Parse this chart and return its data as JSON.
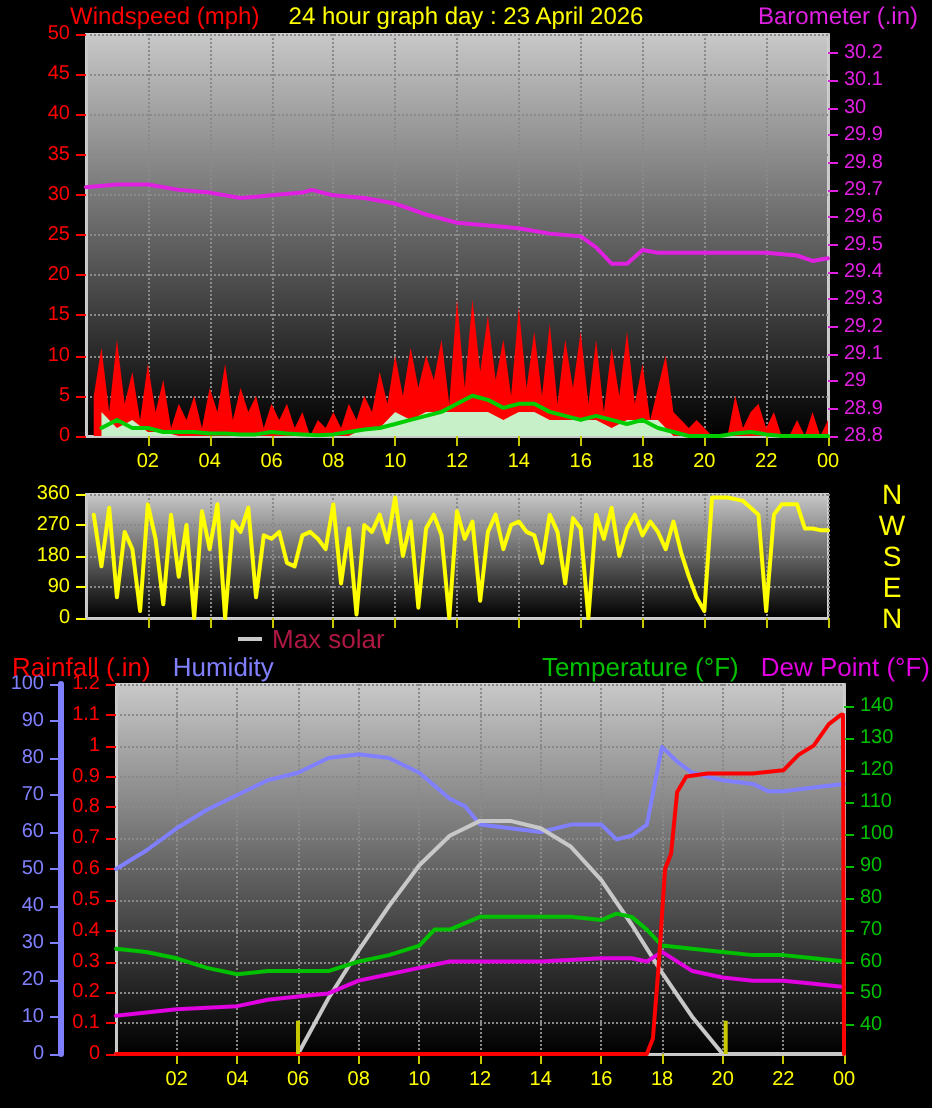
{
  "chart_data": [
    {
      "type": "line",
      "title": "24 hour graph day : 23 April 2026",
      "ylabel": "Windspeed (mph)",
      "y2label": "Barometer (.in)",
      "x": [
        "2026-04-23T00:15",
        "2026-04-23T00:30",
        "2026-04-23T00:45",
        "2026-04-23T01:00",
        "2026-04-23T01:15",
        "2026-04-23T01:30",
        "2026-04-23T01:45",
        "2026-04-23T02:00",
        "2026-04-23T02:15",
        "2026-04-23T02:30",
        "2026-04-23T02:45",
        "2026-04-23T03:00",
        "2026-04-23T03:15",
        "2026-04-23T03:30",
        "2026-04-23T03:45",
        "2026-04-23T04:00",
        "2026-04-23T04:15",
        "2026-04-23T04:30",
        "2026-04-23T04:45",
        "2026-04-23T05:00",
        "2026-04-23T05:15",
        "2026-04-23T05:30",
        "2026-04-23T05:45",
        "2026-04-23T06:00",
        "2026-04-23T06:15",
        "2026-04-23T06:30",
        "2026-04-23T06:45",
        "2026-04-23T07:00",
        "2026-04-23T07:15",
        "2026-04-23T07:30",
        "2026-04-23T07:45",
        "2026-04-23T08:00",
        "2026-04-23T08:15",
        "2026-04-23T08:30",
        "2026-04-23T08:45",
        "2026-04-23T09:00",
        "2026-04-23T09:15",
        "2026-04-23T09:30",
        "2026-04-23T09:45",
        "2026-04-23T10:00",
        "2026-04-23T10:15",
        "2026-04-23T10:30",
        "2026-04-23T10:45",
        "2026-04-23T11:00",
        "2026-04-23T11:15",
        "2026-04-23T11:30",
        "2026-04-23T11:45",
        "2026-04-23T12:00",
        "2026-04-23T12:15",
        "2026-04-23T12:30",
        "2026-04-23T12:45",
        "2026-04-23T13:00",
        "2026-04-23T13:15",
        "2026-04-23T13:30",
        "2026-04-23T13:45",
        "2026-04-23T14:00",
        "2026-04-23T14:15",
        "2026-04-23T14:30",
        "2026-04-23T14:45",
        "2026-04-23T15:00",
        "2026-04-23T15:15",
        "2026-04-23T15:30",
        "2026-04-23T15:45",
        "2026-04-23T16:00",
        "2026-04-23T16:15",
        "2026-04-23T16:30",
        "2026-04-23T16:45",
        "2026-04-23T17:00",
        "2026-04-23T17:15",
        "2026-04-23T17:30",
        "2026-04-23T17:45",
        "2026-04-23T18:00",
        "2026-04-23T18:15",
        "2026-04-23T18:30",
        "2026-04-23T18:45",
        "2026-04-23T19:00",
        "2026-04-23T19:15",
        "2026-04-23T19:30",
        "2026-04-23T19:45",
        "2026-04-23T20:00",
        "2026-04-23T20:15",
        "2026-04-23T20:30",
        "2026-04-23T20:45",
        "2026-04-23T21:00",
        "2026-04-23T21:15",
        "2026-04-23T21:30",
        "2026-04-23T21:45",
        "2026-04-23T22:00",
        "2026-04-23T22:15",
        "2026-04-23T22:30",
        "2026-04-23T22:45",
        "2026-04-23T23:00",
        "2026-04-23T23:15",
        "2026-04-23T23:30",
        "2026-04-23T23:45",
        "2026-04-24T00:00"
      ],
      "series": [
        {
          "type": "area",
          "axis": "y",
          "color": "#ff0000",
          "values": [
            5,
            11,
            3,
            12,
            4,
            8,
            2,
            9,
            3,
            7,
            1,
            4,
            2,
            5,
            1,
            6,
            3,
            9,
            2,
            6,
            3,
            5,
            1,
            4,
            2,
            4,
            1,
            3,
            0,
            2,
            1,
            3,
            1,
            4,
            2,
            5,
            3,
            8,
            4,
            10,
            5,
            11,
            6,
            10,
            7,
            12,
            4,
            17,
            6,
            17,
            8,
            15,
            7,
            12,
            5,
            16,
            6,
            13,
            5,
            14,
            4,
            12,
            6,
            13,
            4,
            12,
            3,
            11,
            5,
            13,
            4,
            9,
            2,
            6,
            10,
            3,
            2,
            1,
            2,
            1,
            0,
            0,
            0,
            5,
            1,
            3,
            4,
            1,
            3,
            0,
            0,
            2,
            0,
            3,
            0,
            2
          ]
        },
        {
          "type": "area",
          "axis": "y",
          "color": "#c8f0c8",
          "x": [
            "2026-04-23T00:30",
            "2026-04-23T01:00",
            "2026-04-23T01:30",
            "2026-04-23T02:00",
            "2026-04-23T02:30",
            "2026-04-23T03:00",
            "2026-04-23T03:30",
            "2026-04-23T04:00",
            "2026-04-23T04:30",
            "2026-04-23T05:00",
            "2026-04-23T05:30",
            "2026-04-23T06:00",
            "2026-04-23T06:30",
            "2026-04-23T07:00",
            "2026-04-23T07:30",
            "2026-04-23T08:00",
            "2026-04-23T08:30",
            "2026-04-23T09:00",
            "2026-04-23T09:30",
            "2026-04-23T10:00",
            "2026-04-23T10:30",
            "2026-04-23T11:00",
            "2026-04-23T11:30",
            "2026-04-23T12:00",
            "2026-04-23T12:30",
            "2026-04-23T13:00",
            "2026-04-23T13:30",
            "2026-04-23T14:00",
            "2026-04-23T14:30",
            "2026-04-23T15:00",
            "2026-04-23T15:30",
            "2026-04-23T16:00",
            "2026-04-23T16:30",
            "2026-04-23T17:00",
            "2026-04-23T17:30",
            "2026-04-23T18:00",
            "2026-04-23T18:30",
            "2026-04-23T19:00",
            "2026-04-23T19:30",
            "2026-04-23T20:00",
            "2026-04-23T20:30",
            "2026-04-23T21:00",
            "2026-04-23T21:30",
            "2026-04-23T22:00",
            "2026-04-23T22:30",
            "2026-04-23T23:00",
            "2026-04-23T23:30",
            "2026-04-24T00:00"
          ],
          "values": [
            3,
            1,
            2,
            0.5,
            0.5,
            0,
            0,
            0,
            0,
            0,
            0,
            0,
            0,
            0,
            0,
            0,
            0,
            1,
            1,
            3,
            2,
            3,
            3,
            3,
            3,
            3,
            2,
            3,
            3,
            2,
            2,
            2,
            2,
            1,
            2,
            2,
            2,
            0,
            0,
            0,
            0,
            0,
            0,
            0,
            0,
            0,
            0,
            0
          ]
        },
        {
          "axis": "y",
          "color": "#00cc00",
          "x": [
            "2026-04-23T00:30",
            "2026-04-23T01:00",
            "2026-04-23T01:30",
            "2026-04-23T02:00",
            "2026-04-23T02:30",
            "2026-04-23T03:00",
            "2026-04-23T03:30",
            "2026-04-23T04:00",
            "2026-04-23T04:30",
            "2026-04-23T05:00",
            "2026-04-23T05:30",
            "2026-04-23T06:00",
            "2026-04-23T06:30",
            "2026-04-23T07:00",
            "2026-04-23T07:30",
            "2026-04-23T08:00",
            "2026-04-23T08:30",
            "2026-04-23T09:00",
            "2026-04-23T09:30",
            "2026-04-23T10:00",
            "2026-04-23T10:30",
            "2026-04-23T11:00",
            "2026-04-23T11:30",
            "2026-04-23T12:00",
            "2026-04-23T12:30",
            "2026-04-23T13:00",
            "2026-04-23T13:30",
            "2026-04-23T14:00",
            "2026-04-23T14:30",
            "2026-04-23T15:00",
            "2026-04-23T15:30",
            "2026-04-23T16:00",
            "2026-04-23T16:30",
            "2026-04-23T17:00",
            "2026-04-23T17:30",
            "2026-04-23T18:00",
            "2026-04-23T18:30",
            "2026-04-23T19:00",
            "2026-04-23T19:30",
            "2026-04-23T20:00",
            "2026-04-23T20:30",
            "2026-04-23T21:00",
            "2026-04-23T21:30",
            "2026-04-23T22:00",
            "2026-04-23T22:30",
            "2026-04-23T23:00",
            "2026-04-23T23:30",
            "2026-04-24T00:00"
          ],
          "values": [
            1,
            2,
            1,
            1,
            0.5,
            0.5,
            0.5,
            0.3,
            0.3,
            0.2,
            0.2,
            0.5,
            0.3,
            0.2,
            0.1,
            0.2,
            0.5,
            0.8,
            1,
            1.5,
            2,
            2.5,
            3,
            4,
            5,
            4.5,
            3.5,
            4,
            4,
            3,
            2.5,
            2,
            2.5,
            2,
            1.5,
            2,
            1,
            0.5,
            0,
            0,
            0,
            0.3,
            0.5,
            0.2,
            0,
            0,
            0,
            0
          ]
        },
        {
          "axis": "y2",
          "color": "#e020e0",
          "x": [
            "2026-04-23T00:00",
            "2026-04-23T01:00",
            "2026-04-23T02:00",
            "2026-04-23T03:00",
            "2026-04-23T04:00",
            "2026-04-23T05:00",
            "2026-04-23T06:00",
            "2026-04-23T07:00",
            "2026-04-23T07:18",
            "2026-04-23T08:00",
            "2026-04-23T09:00",
            "2026-04-23T10:00",
            "2026-04-23T11:00",
            "2026-04-23T12:00",
            "2026-04-23T13:00",
            "2026-04-23T14:00",
            "2026-04-23T15:00",
            "2026-04-23T16:00",
            "2026-04-23T16:30",
            "2026-04-23T17:00",
            "2026-04-23T17:30",
            "2026-04-23T18:00",
            "2026-04-23T18:30",
            "2026-04-23T19:00",
            "2026-04-23T20:00",
            "2026-04-23T21:00",
            "2026-04-23T22:00",
            "2026-04-23T23:00",
            "2026-04-23T23:30",
            "2026-04-24T00:00"
          ],
          "values": [
            29.71,
            29.72,
            29.72,
            29.7,
            29.69,
            29.67,
            29.68,
            29.69,
            29.7,
            29.68,
            29.67,
            29.65,
            29.61,
            29.58,
            29.57,
            29.56,
            29.54,
            29.53,
            29.49,
            29.43,
            29.43,
            29.48,
            29.47,
            29.47,
            29.47,
            29.47,
            29.47,
            29.46,
            29.44,
            29.45
          ]
        }
      ],
      "xlim": [
        "2026-04-23T00:00",
        "2026-04-24T00:00"
      ],
      "xticks": [
        {
          "value": "2026-04-23T02:00",
          "label": "02"
        },
        {
          "value": "2026-04-23T04:00",
          "label": "04"
        },
        {
          "value": "2026-04-23T06:00",
          "label": "06"
        },
        {
          "value": "2026-04-23T08:00",
          "label": "08"
        },
        {
          "value": "2026-04-23T10:00",
          "label": "10"
        },
        {
          "value": "2026-04-23T12:00",
          "label": "12"
        },
        {
          "value": "2026-04-23T14:00",
          "label": "14"
        },
        {
          "value": "2026-04-23T16:00",
          "label": "16"
        },
        {
          "value": "2026-04-23T18:00",
          "label": "18"
        },
        {
          "value": "2026-04-23T20:00",
          "label": "20"
        },
        {
          "value": "2026-04-23T22:00",
          "label": "22"
        },
        {
          "value": "2026-04-24T00:00",
          "label": "00"
        }
      ],
      "ylim": [
        0,
        50
      ],
      "yticks": [
        0,
        5,
        10,
        15,
        20,
        25,
        30,
        35,
        40,
        45,
        50
      ],
      "y2lim": [
        28.8,
        30.27
      ],
      "y2ticks": [
        28.8,
        28.9,
        {
          "value": 29,
          "label": "29"
        },
        29.1,
        29.2,
        29.3,
        29.4,
        29.5,
        29.6,
        29.7,
        29.8,
        29.9,
        {
          "value": 30,
          "label": "30"
        },
        30.1,
        30.2
      ],
      "grid": true
    },
    {
      "type": "line",
      "tick_labels": "y",
      "annotations": [
        "N",
        "W",
        "S",
        "E",
        "N"
      ],
      "x": [
        "2026-04-23T00:15",
        "2026-04-23T00:30",
        "2026-04-23T00:45",
        "2026-04-23T01:00",
        "2026-04-23T01:15",
        "2026-04-23T01:30",
        "2026-04-23T01:45",
        "2026-04-23T02:00",
        "2026-04-23T02:15",
        "2026-04-23T02:30",
        "2026-04-23T02:45",
        "2026-04-23T03:00",
        "2026-04-23T03:15",
        "2026-04-23T03:30",
        "2026-04-23T03:45",
        "2026-04-23T04:00",
        "2026-04-23T04:15",
        "2026-04-23T04:30",
        "2026-04-23T04:45",
        "2026-04-23T05:00",
        "2026-04-23T05:15",
        "2026-04-23T05:30",
        "2026-04-23T05:45",
        "2026-04-23T06:00",
        "2026-04-23T06:15",
        "2026-04-23T06:30",
        "2026-04-23T06:45",
        "2026-04-23T07:00",
        "2026-04-23T07:15",
        "2026-04-23T07:30",
        "2026-04-23T07:45",
        "2026-04-23T08:00",
        "2026-04-23T08:15",
        "2026-04-23T08:30",
        "2026-04-23T08:45",
        "2026-04-23T09:00",
        "2026-04-23T09:15",
        "2026-04-23T09:30",
        "2026-04-23T09:45",
        "2026-04-23T10:00",
        "2026-04-23T10:15",
        "2026-04-23T10:30",
        "2026-04-23T10:45",
        "2026-04-23T11:00",
        "2026-04-23T11:15",
        "2026-04-23T11:30",
        "2026-04-23T11:45",
        "2026-04-23T12:00",
        "2026-04-23T12:15",
        "2026-04-23T12:30",
        "2026-04-23T12:45",
        "2026-04-23T13:00",
        "2026-04-23T13:15",
        "2026-04-23T13:30",
        "2026-04-23T13:45",
        "2026-04-23T14:00",
        "2026-04-23T14:15",
        "2026-04-23T14:30",
        "2026-04-23T14:45",
        "2026-04-23T15:00",
        "2026-04-23T15:15",
        "2026-04-23T15:30",
        "2026-04-23T15:45",
        "2026-04-23T16:00",
        "2026-04-23T16:15",
        "2026-04-23T16:30",
        "2026-04-23T16:45",
        "2026-04-23T17:00",
        "2026-04-23T17:15",
        "2026-04-23T17:30",
        "2026-04-23T17:45",
        "2026-04-23T18:00",
        "2026-04-23T18:15",
        "2026-04-23T18:30",
        "2026-04-23T18:45",
        "2026-04-23T19:00",
        "2026-04-23T19:15",
        "2026-04-23T19:30",
        "2026-04-23T19:45",
        "2026-04-23T20:00",
        "2026-04-23T20:15",
        "2026-04-23T20:30",
        "2026-04-23T20:45",
        "2026-04-23T21:00",
        "2026-04-23T21:15",
        "2026-04-23T21:30",
        "2026-04-23T21:45",
        "2026-04-23T22:00",
        "2026-04-23T22:15",
        "2026-04-23T22:30",
        "2026-04-23T22:45",
        "2026-04-23T23:00",
        "2026-04-23T23:15",
        "2026-04-23T23:30",
        "2026-04-23T23:45",
        "2026-04-24T00:00"
      ],
      "series": [
        {
          "axis": "y",
          "color": "#ffff00",
          "values": [
            300,
            150,
            320,
            60,
            250,
            200,
            20,
            330,
            230,
            40,
            300,
            120,
            270,
            0,
            310,
            200,
            330,
            0,
            280,
            250,
            320,
            60,
            240,
            230,
            250,
            160,
            150,
            240,
            250,
            230,
            200,
            330,
            100,
            260,
            10,
            270,
            250,
            300,
            220,
            350,
            180,
            280,
            30,
            260,
            300,
            240,
            0,
            310,
            230,
            280,
            50,
            250,
            300,
            200,
            270,
            280,
            250,
            240,
            160,
            300,
            250,
            100,
            290,
            260,
            0,
            300,
            230,
            320,
            180,
            260,
            300,
            240,
            280,
            250,
            200,
            280,
            190,
            120,
            60,
            20,
            350,
            350,
            350,
            345,
            340,
            320,
            300,
            20,
            300,
            330,
            330,
            330,
            260,
            260,
            255,
            255
          ]
        }
      ],
      "xlim": [
        "2026-04-23T00:00",
        "2026-04-24T00:00"
      ],
      "xticks": [
        "2026-04-23T02:00",
        "2026-04-23T04:00",
        "2026-04-23T06:00",
        "2026-04-23T08:00",
        "2026-04-23T10:00",
        "2026-04-23T12:00",
        "2026-04-23T14:00",
        "2026-04-23T16:00",
        "2026-04-23T18:00",
        "2026-04-23T20:00",
        "2026-04-23T22:00",
        "2026-04-24T00:00"
      ],
      "ylim": [
        0,
        360
      ],
      "yticks": [
        0,
        90,
        180,
        270,
        360
      ],
      "grid": true
    },
    {
      "type": "line",
      "legend": "top",
      "series": [
        {
          "name": "Humidity",
          "axis": "y2",
          "color": "#8080ff",
          "x": [
            "2026-04-23T00:00",
            "2026-04-23T01:00",
            "2026-04-23T02:00",
            "2026-04-23T03:00",
            "2026-04-23T04:00",
            "2026-04-23T05:00",
            "2026-04-23T06:00",
            "2026-04-23T07:00",
            "2026-04-23T08:00",
            "2026-04-23T09:00",
            "2026-04-23T10:00",
            "2026-04-23T11:00",
            "2026-04-23T11:30",
            "2026-04-23T12:00",
            "2026-04-23T13:00",
            "2026-04-23T14:00",
            "2026-04-23T15:00",
            "2026-04-23T16:00",
            "2026-04-23T16:30",
            "2026-04-23T17:00",
            "2026-04-23T17:30",
            "2026-04-23T18:00",
            "2026-04-23T18:30",
            "2026-04-23T19:00",
            "2026-04-23T20:00",
            "2026-04-23T21:00",
            "2026-04-23T21:30",
            "2026-04-23T22:00",
            "2026-04-23T23:00",
            "2026-04-24T00:00"
          ],
          "values": [
            50,
            55,
            61,
            66,
            70,
            74,
            76,
            80,
            81,
            80,
            76,
            69,
            67,
            62,
            61,
            60,
            62,
            62,
            58,
            59,
            62,
            83,
            79,
            76,
            74,
            73,
            71,
            71,
            72,
            73
          ]
        },
        {
          "name": "Max solar",
          "axis": "y2",
          "color": "#c8c8c8",
          "x": [
            "2026-04-23T00:00",
            "2026-04-23T06:00",
            "2026-04-23T07:00",
            "2026-04-23T08:00",
            "2026-04-23T09:00",
            "2026-04-23T10:00",
            "2026-04-23T11:00",
            "2026-04-23T12:00",
            "2026-04-23T13:00",
            "2026-04-23T14:00",
            "2026-04-23T15:00",
            "2026-04-23T16:00",
            "2026-04-23T17:00",
            "2026-04-23T18:00",
            "2026-04-23T19:00",
            "2026-04-23T20:00",
            "2026-04-24T00:00"
          ],
          "values": [
            0,
            0,
            15,
            28,
            40,
            51,
            59,
            63,
            63,
            61,
            56,
            47,
            35,
            22,
            10,
            0,
            0
          ]
        },
        {
          "name": "Temperature (°F)",
          "axis": "y3",
          "color": "#00c000",
          "x": [
            "2026-04-23T00:00",
            "2026-04-23T01:00",
            "2026-04-23T02:00",
            "2026-04-23T03:00",
            "2026-04-23T04:00",
            "2026-04-23T05:00",
            "2026-04-23T06:00",
            "2026-04-23T07:00",
            "2026-04-23T08:00",
            "2026-04-23T09:00",
            "2026-04-23T10:00",
            "2026-04-23T10:30",
            "2026-04-23T11:00",
            "2026-04-23T12:00",
            "2026-04-23T13:00",
            "2026-04-23T14:00",
            "2026-04-23T15:00",
            "2026-04-23T16:00",
            "2026-04-23T16:30",
            "2026-04-23T17:00",
            "2026-04-23T17:30",
            "2026-04-23T18:00",
            "2026-04-23T19:00",
            "2026-04-23T20:00",
            "2026-04-23T21:00",
            "2026-04-23T22:00",
            "2026-04-23T23:00",
            "2026-04-24T00:00"
          ],
          "values": [
            64,
            63,
            61,
            58,
            56,
            57,
            57,
            57,
            60,
            62,
            65,
            70,
            70,
            74,
            74,
            74,
            74,
            73,
            75,
            74,
            70,
            65,
            64,
            63,
            62,
            62,
            61,
            60
          ]
        },
        {
          "name": "Dew Point (°F)",
          "axis": "y3",
          "color": "#e000e0",
          "x": [
            "2026-04-23T00:00",
            "2026-04-23T02:00",
            "2026-04-23T04:00",
            "2026-04-23T05:00",
            "2026-04-23T06:00",
            "2026-04-23T07:00",
            "2026-04-23T08:00",
            "2026-04-23T09:00",
            "2026-04-23T10:00",
            "2026-04-23T11:00",
            "2026-04-23T12:00",
            "2026-04-23T13:00",
            "2026-04-23T14:00",
            "2026-04-23T16:00",
            "2026-04-23T17:00",
            "2026-04-23T17:30",
            "2026-04-23T18:00",
            "2026-04-23T19:00",
            "2026-04-23T20:00",
            "2026-04-23T21:00",
            "2026-04-23T22:00",
            "2026-04-23T23:00",
            "2026-04-24T00:00"
          ],
          "values": [
            43,
            45,
            46,
            48,
            49,
            50,
            54,
            56,
            58,
            60,
            60,
            60,
            60,
            61,
            61,
            60,
            63,
            57,
            55,
            54,
            54,
            53,
            52
          ]
        },
        {
          "name": "Rainfall (.in)",
          "axis": "y",
          "color": "#ff0000",
          "x": [
            "2026-04-23T00:00",
            "2026-04-23T17:30",
            "2026-04-23T17:42",
            "2026-04-23T17:54",
            "2026-04-23T18:06",
            "2026-04-23T18:18",
            "2026-04-23T18:30",
            "2026-04-23T18:48",
            "2026-04-23T19:30",
            "2026-04-23T21:00",
            "2026-04-23T22:00",
            "2026-04-23T22:30",
            "2026-04-23T23:00",
            "2026-04-23T23:30",
            "2026-04-23T23:54",
            "2026-04-23T23:58",
            "2026-04-24T00:00"
          ],
          "values": [
            0,
            0,
            0.05,
            0.3,
            0.6,
            0.65,
            0.85,
            0.9,
            0.91,
            0.91,
            0.92,
            0.97,
            1.0,
            1.07,
            1.1,
            1.1,
            0
          ]
        }
      ],
      "xlim": [
        "2026-04-23T00:00",
        "2026-04-24T00:00"
      ],
      "xticks": [
        {
          "value": "2026-04-23T02:00",
          "label": "02"
        },
        {
          "value": "2026-04-23T04:00",
          "label": "04"
        },
        {
          "value": "2026-04-23T06:00",
          "label": "06"
        },
        {
          "value": "2026-04-23T08:00",
          "label": "08"
        },
        {
          "value": "2026-04-23T10:00",
          "label": "10"
        },
        {
          "value": "2026-04-23T12:00",
          "label": "12"
        },
        {
          "value": "2026-04-23T14:00",
          "label": "14"
        },
        {
          "value": "2026-04-23T16:00",
          "label": "16"
        },
        {
          "value": "2026-04-23T18:00",
          "label": "18"
        },
        {
          "value": "2026-04-23T20:00",
          "label": "20"
        },
        {
          "value": "2026-04-23T22:00",
          "label": "22"
        },
        {
          "value": "2026-04-24T00:00",
          "label": "00"
        }
      ],
      "ylim": [
        0,
        1.2
      ],
      "yticks": [
        0,
        0.1,
        0.2,
        0.3,
        0.4,
        0.5,
        0.6,
        0.7,
        0.8,
        0.9,
        1,
        1.1,
        1.2
      ],
      "y2lim": [
        0,
        100
      ],
      "y2ticks": [
        0,
        10,
        20,
        30,
        40,
        50,
        60,
        70,
        80,
        90,
        100
      ],
      "y3lim": [
        31,
        147
      ],
      "y3ticks": [
        40,
        50,
        60,
        70,
        80,
        90,
        100,
        110,
        120,
        130,
        140
      ],
      "ref_lines": [
        {
          "axis": "x",
          "value": "2026-04-23T06:00",
          "color": "#c8c800"
        },
        {
          "axis": "x",
          "value": "2026-04-23T20:06",
          "color": "#c8c800"
        }
      ],
      "grid": true
    }
  ]
}
